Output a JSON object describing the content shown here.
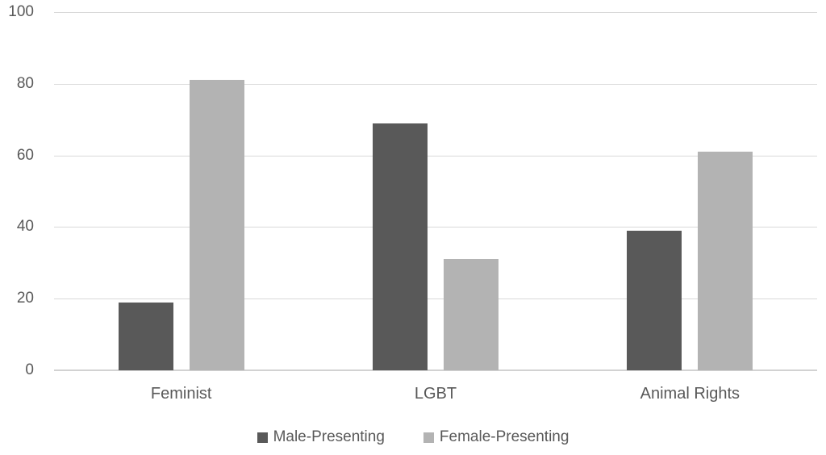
{
  "chart_data": {
    "type": "bar",
    "title": "",
    "xlabel": "",
    "ylabel": "",
    "categories": [
      "Feminist",
      "LGBT",
      "Animal Rights"
    ],
    "series": [
      {
        "name": "Male-Presenting",
        "color": "#595959",
        "values": [
          19,
          69,
          39
        ]
      },
      {
        "name": "Female-Presenting",
        "color": "#b3b3b3",
        "values": [
          81,
          31,
          61
        ]
      }
    ],
    "ylim": [
      0,
      100
    ],
    "yticks": [
      0,
      20,
      40,
      60,
      80,
      100
    ],
    "grid": true,
    "legend_position": "bottom"
  },
  "colors": {
    "background": "#ffffff",
    "gridline": "#d9d9d9",
    "axis_line": "#d2d2d2",
    "text": "#595959"
  }
}
